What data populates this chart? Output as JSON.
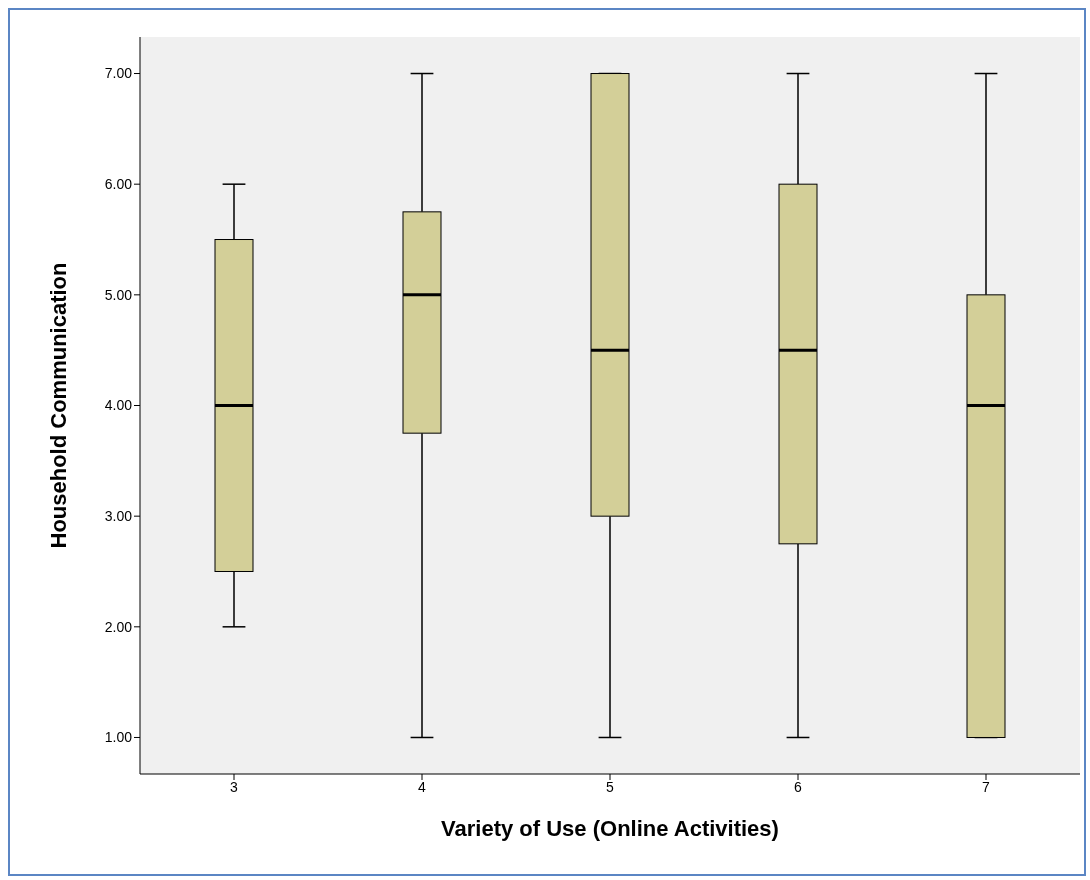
{
  "chart_data": {
    "type": "box",
    "xlabel": "Variety of Use (Online Activities)",
    "ylabel": "Household Communication",
    "categories": [
      "3",
      "4",
      "5",
      "6",
      "7"
    ],
    "color": "#d3cf98",
    "boxes": [
      {
        "low": 2,
        "q1": 2.5,
        "median": 4,
        "q3": 5.5,
        "high": 6
      },
      {
        "low": 1,
        "q1": 3.75,
        "median": 5,
        "q3": 5.75,
        "high": 7
      },
      {
        "low": 1,
        "q1": 3,
        "median": 4.5,
        "q3": 7,
        "high": 7
      },
      {
        "low": 1,
        "q1": 2.75,
        "median": 4.5,
        "q3": 6,
        "high": 7
      },
      {
        "low": 1,
        "q1": 1,
        "median": 4,
        "q3": 5,
        "high": 7
      }
    ],
    "ylim": [
      0.67,
      7.33
    ],
    "yticks": [
      {
        "value": 1,
        "label": "1.00"
      },
      {
        "value": 2,
        "label": "2.00"
      },
      {
        "value": 3,
        "label": "3.00"
      },
      {
        "value": 4,
        "label": "4.00"
      },
      {
        "value": 5,
        "label": "5.00"
      },
      {
        "value": 6,
        "label": "6.00"
      },
      {
        "value": 7,
        "label": "7.00"
      }
    ],
    "grid": false
  }
}
